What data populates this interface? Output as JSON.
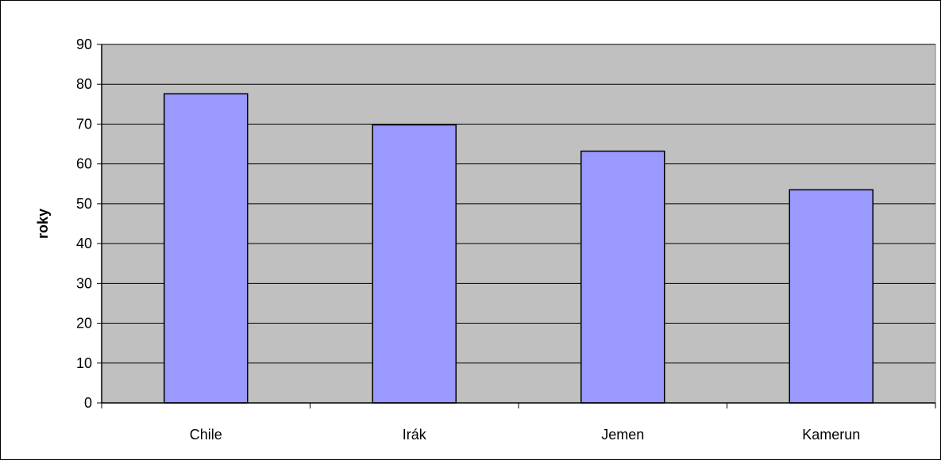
{
  "chart_data": {
    "type": "bar",
    "categories": [
      "Chile",
      "Irák",
      "Jemen",
      "Kamerun"
    ],
    "values": [
      77.6,
      69.8,
      63.2,
      53.5
    ],
    "title": "",
    "xlabel": "",
    "ylabel": "roky",
    "ylim": [
      0,
      90
    ],
    "yticks": [
      "0",
      "10",
      "20",
      "30",
      "40",
      "50",
      "60",
      "70",
      "80",
      "90"
    ],
    "grid": true,
    "legend": "none",
    "colors": {
      "plot_background": "#C0C0C0",
      "bar_fill": "#9999FF",
      "bar_stroke": "#000000",
      "gridline": "#000000"
    }
  }
}
